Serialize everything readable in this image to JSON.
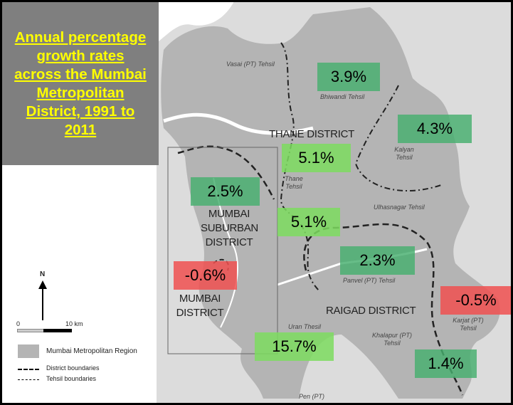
{
  "title": "Annual percentage growth rates across the Mumbai Metropolitan District, 1991 to 2011",
  "colors": {
    "title_bg": "#7f7f7f",
    "title_text": "#ffff00",
    "positive_dark": "#46af6e",
    "positive_light": "#7ddc5f",
    "negative": "#f05050"
  },
  "district_labels": {
    "thane": "THANE DISTRICT",
    "mumbai_suburban": "MUMBAI SUBURBAN DISTRICT",
    "mumbai": "MUMBAI DISTRICT",
    "raigad": "RAIGAD DISTRICT"
  },
  "tehsil_labels": {
    "vasai": "Vasai (PT) Tehsil",
    "bhiwandi": "Bhiwandi Tehsil",
    "kalyan": "Kalyan Tehsil",
    "thane": "Thane Tehsil",
    "ulhasnagar": "Ulhasnagar Tehsil",
    "panvel": "Panvel (PT) Tehsil",
    "karjat": "Karjat (PT) Tehsil",
    "khalapur": "Khalapur (PT) Tehsil",
    "uran": "Uran Thesil",
    "pen": "Pen (PT)"
  },
  "growth_rates": {
    "bhiwandi": "3.9%",
    "kalyan": "4.3%",
    "thane_north": "5.1%",
    "mumbai_suburban": "2.5%",
    "thane": "5.1%",
    "panvel": "2.3%",
    "mumbai": "-0.6%",
    "karjat": "-0.5%",
    "uran": "15.7%",
    "khalapur": "1.4%"
  },
  "legend": {
    "north": "N",
    "scale_start": "0",
    "scale_end": "10 km",
    "region": "Mumbai Metropolitan Region",
    "district_boundaries": "District boundaries",
    "tehsil_boundaries": "Tehsil boundaries"
  }
}
